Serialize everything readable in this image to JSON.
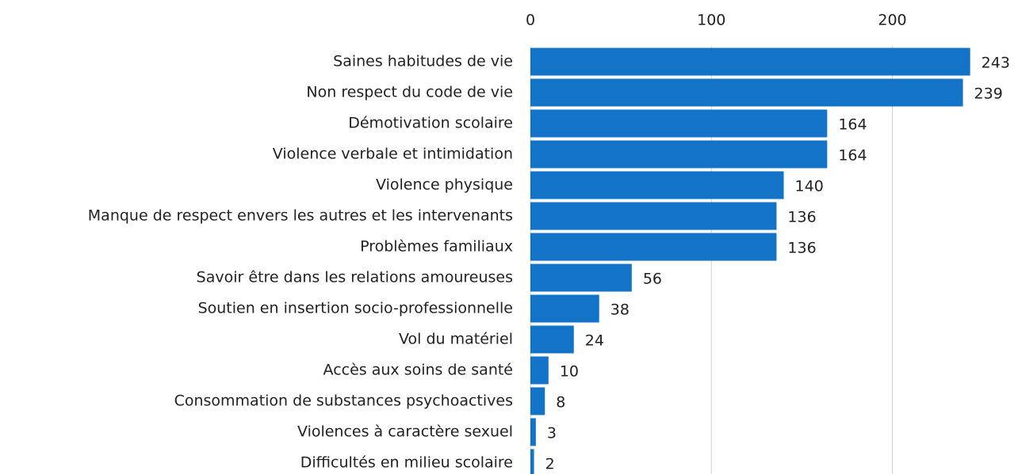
{
  "chart_data": {
    "type": "bar",
    "orientation": "horizontal",
    "categories": [
      "Saines habitudes de vie",
      "Non respect du code de vie",
      "Démotivation scolaire",
      "Violence verbale et intimidation",
      "Violence physique",
      "Manque de respect envers les autres et les intervenants",
      "Problèmes familiaux",
      "Savoir être dans les relations amoureuses",
      "Soutien en insertion socio-professionnelle",
      "Vol du matériel",
      "Accès aux soins de santé",
      "Consommation de substances psychoactives",
      "Violences à caractère sexuel",
      "Difficultés en milieu scolaire"
    ],
    "values": [
      243,
      239,
      164,
      164,
      140,
      136,
      136,
      56,
      38,
      24,
      10,
      8,
      3,
      2
    ],
    "color": "#1273c7",
    "xlim": [
      0,
      269
    ],
    "xticks": [
      0,
      100,
      200
    ],
    "grid": true,
    "axis_position": "top"
  }
}
